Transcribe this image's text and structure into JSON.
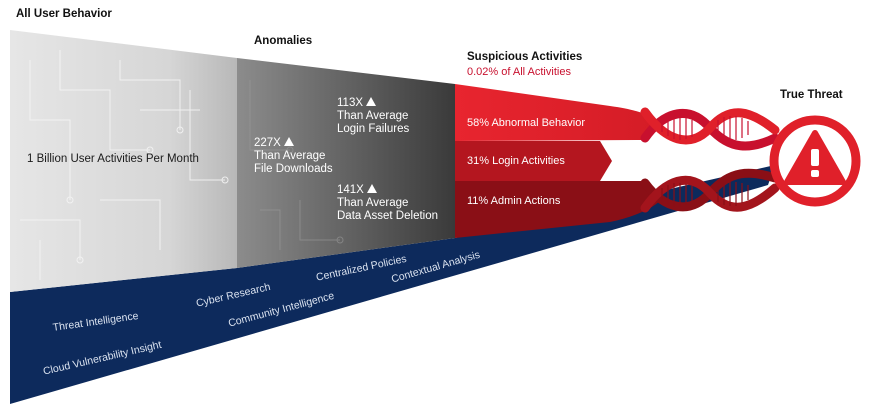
{
  "headers": {
    "all_user_behavior": "All User Behavior",
    "anomalies": "Anomalies",
    "suspicious_activities": "Suspicious Activities",
    "suspicious_subtitle": "0.02% of All Activities",
    "true_threat": "True Threat"
  },
  "all_activities_label": "1 Billion User Activities Per Month",
  "anomalies": [
    {
      "value": "113X",
      "line1": "Than Average",
      "line2": "Login Failures"
    },
    {
      "value": "227X",
      "line1": "Than Average",
      "line2": "File Downloads"
    },
    {
      "value": "141X",
      "line1": "Than Average",
      "line2": "Data Asset Deletion"
    }
  ],
  "suspicious": [
    {
      "label": "58% Abnormal Behavior"
    },
    {
      "label": "31% Login Activities"
    },
    {
      "label": "11% Admin Actions"
    }
  ],
  "capabilities": [
    "Threat Intelligence",
    "Cloud Vulnerability Insight",
    "Cyber Research",
    "Community Intelligence",
    "Centralized Policies",
    "Contextual Analysis"
  ],
  "colors": {
    "navy": "#0d2a5c",
    "red": "#e0202a",
    "dark_red": "#a3141c",
    "deep_red": "#8a0f16",
    "gray_light": "#cfcfcf",
    "gray_dark": "#4a4a4a"
  },
  "icons": {
    "true_threat": "warning-exclamation-icon",
    "arrows": "up-triangle-icon"
  }
}
